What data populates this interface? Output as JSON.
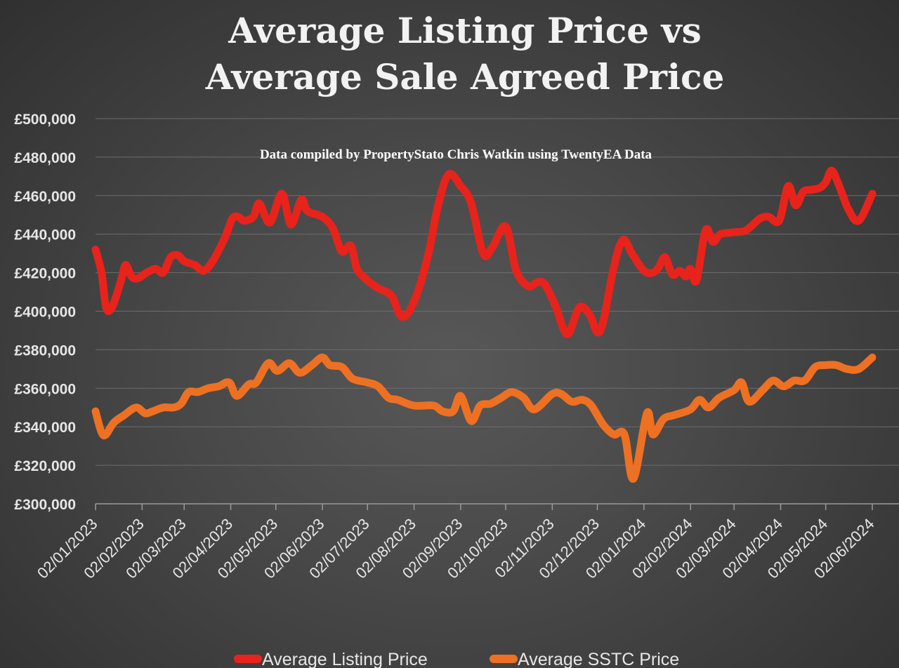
{
  "chart_data": {
    "type": "line",
    "title": [
      "Average Listing Price vs",
      "Average Sale Agreed Price"
    ],
    "annotation": "Data compiled by PropertyStato Chris Watkin using TwentyEA Data",
    "ylim": [
      300000,
      500000
    ],
    "y_ticks": [
      300000,
      320000,
      340000,
      360000,
      380000,
      400000,
      420000,
      440000,
      460000,
      480000,
      500000
    ],
    "y_tick_labels": [
      "£300,000",
      "£320,000",
      "£340,000",
      "£360,000",
      "£380,000",
      "£400,000",
      "£420,000",
      "£440,000",
      "£460,000",
      "£480,000",
      "£500,000"
    ],
    "x_range": [
      "2023-01-02",
      "2024-06-02"
    ],
    "x_ticks": [
      "2023-01-02",
      "2023-02-02",
      "2023-03-02",
      "2023-04-02",
      "2023-05-02",
      "2023-06-02",
      "2023-07-02",
      "2023-08-02",
      "2023-09-02",
      "2023-10-02",
      "2023-11-02",
      "2023-12-02",
      "2024-01-02",
      "2024-02-02",
      "2024-03-02",
      "2024-04-02",
      "2024-05-02",
      "2024-06-02"
    ],
    "x_tick_labels": [
      "02/01/2023",
      "02/02/2023",
      "02/03/2023",
      "02/04/2023",
      "02/05/2023",
      "02/06/2023",
      "02/07/2023",
      "02/08/2023",
      "02/09/2023",
      "02/10/2023",
      "02/11/2023",
      "02/12/2023",
      "02/01/2024",
      "02/02/2024",
      "02/03/2024",
      "02/04/2024",
      "02/05/2024",
      "02/06/2024"
    ],
    "grid": true,
    "legend_position": "bottom",
    "series": [
      {
        "name": "Average Listing Price",
        "color": "#e8231b",
        "points": [
          [
            "2023-01-02",
            432000
          ],
          [
            "2023-01-06",
            420000
          ],
          [
            "2023-01-09",
            402000
          ],
          [
            "2023-01-13",
            402000
          ],
          [
            "2023-01-19",
            416000
          ],
          [
            "2023-01-22",
            424000
          ],
          [
            "2023-01-26",
            418000
          ],
          [
            "2023-01-30",
            417000
          ],
          [
            "2023-02-05",
            420000
          ],
          [
            "2023-02-11",
            422000
          ],
          [
            "2023-02-16",
            420000
          ],
          [
            "2023-02-21",
            428000
          ],
          [
            "2023-02-26",
            429000
          ],
          [
            "2023-03-02",
            426000
          ],
          [
            "2023-03-09",
            424000
          ],
          [
            "2023-03-15",
            421000
          ],
          [
            "2023-03-21",
            426000
          ],
          [
            "2023-03-29",
            438000
          ],
          [
            "2023-04-03",
            448000
          ],
          [
            "2023-04-07",
            449000
          ],
          [
            "2023-04-11",
            447000
          ],
          [
            "2023-04-17",
            449000
          ],
          [
            "2023-04-21",
            456000
          ],
          [
            "2023-04-28",
            446000
          ],
          [
            "2023-05-06",
            461000
          ],
          [
            "2023-05-12",
            445000
          ],
          [
            "2023-05-19",
            458000
          ],
          [
            "2023-05-23",
            452000
          ],
          [
            "2023-06-02",
            449000
          ],
          [
            "2023-06-09",
            443000
          ],
          [
            "2023-06-15",
            431000
          ],
          [
            "2023-06-21",
            434000
          ],
          [
            "2023-06-25",
            422000
          ],
          [
            "2023-07-02",
            416000
          ],
          [
            "2023-07-09",
            412000
          ],
          [
            "2023-07-18",
            408000
          ],
          [
            "2023-07-25",
            397000
          ],
          [
            "2023-08-02",
            405000
          ],
          [
            "2023-08-11",
            428000
          ],
          [
            "2023-08-18",
            455000
          ],
          [
            "2023-08-25",
            471000
          ],
          [
            "2023-09-02",
            465000
          ],
          [
            "2023-09-09",
            456000
          ],
          [
            "2023-09-17",
            430000
          ],
          [
            "2023-09-23",
            433000
          ],
          [
            "2023-10-02",
            444000
          ],
          [
            "2023-10-09",
            421000
          ],
          [
            "2023-10-17",
            413000
          ],
          [
            "2023-10-23",
            415000
          ],
          [
            "2023-10-28",
            414000
          ],
          [
            "2023-11-04",
            403000
          ],
          [
            "2023-11-12",
            388000
          ],
          [
            "2023-11-20",
            402000
          ],
          [
            "2023-11-27",
            398000
          ],
          [
            "2023-12-02",
            389000
          ],
          [
            "2023-12-06",
            395000
          ],
          [
            "2023-12-13",
            423000
          ],
          [
            "2023-12-19",
            437000
          ],
          [
            "2023-12-25",
            430000
          ],
          [
            "2024-01-02",
            421000
          ],
          [
            "2024-01-08",
            420000
          ],
          [
            "2024-01-12",
            423000
          ],
          [
            "2024-01-16",
            428000
          ],
          [
            "2024-01-21",
            419000
          ],
          [
            "2024-01-26",
            421000
          ],
          [
            "2024-01-30",
            418000
          ],
          [
            "2024-02-02",
            422000
          ],
          [
            "2024-02-06",
            416000
          ],
          [
            "2024-02-12",
            442000
          ],
          [
            "2024-02-17",
            436000
          ],
          [
            "2024-02-22",
            440000
          ],
          [
            "2024-03-02",
            441000
          ],
          [
            "2024-03-10",
            442000
          ],
          [
            "2024-03-19",
            448000
          ],
          [
            "2024-03-25",
            449000
          ],
          [
            "2024-04-01",
            447000
          ],
          [
            "2024-04-07",
            465000
          ],
          [
            "2024-04-12",
            455000
          ],
          [
            "2024-04-17",
            462000
          ],
          [
            "2024-04-22",
            463000
          ],
          [
            "2024-04-28",
            464000
          ],
          [
            "2024-05-02",
            467000
          ],
          [
            "2024-05-06",
            473000
          ],
          [
            "2024-05-11",
            465000
          ],
          [
            "2024-05-17",
            453000
          ],
          [
            "2024-05-24",
            447000
          ],
          [
            "2024-06-02",
            461000
          ]
        ]
      },
      {
        "name": "Average SSTC Price",
        "color": "#ee7023",
        "points": [
          [
            "2023-01-02",
            348000
          ],
          [
            "2023-01-06",
            337000
          ],
          [
            "2023-01-09",
            336000
          ],
          [
            "2023-01-14",
            342000
          ],
          [
            "2023-01-21",
            346000
          ],
          [
            "2023-01-29",
            350000
          ],
          [
            "2023-02-04",
            347000
          ],
          [
            "2023-02-09",
            348000
          ],
          [
            "2023-02-16",
            350000
          ],
          [
            "2023-02-23",
            350000
          ],
          [
            "2023-02-28",
            352000
          ],
          [
            "2023-03-05",
            358000
          ],
          [
            "2023-03-11",
            358000
          ],
          [
            "2023-03-18",
            360000
          ],
          [
            "2023-03-25",
            361000
          ],
          [
            "2023-04-01",
            363000
          ],
          [
            "2023-04-06",
            356000
          ],
          [
            "2023-04-14",
            362000
          ],
          [
            "2023-04-19",
            363000
          ],
          [
            "2023-04-27",
            373000
          ],
          [
            "2023-05-03",
            369000
          ],
          [
            "2023-05-11",
            373000
          ],
          [
            "2023-05-18",
            368000
          ],
          [
            "2023-05-26",
            372000
          ],
          [
            "2023-06-02",
            376000
          ],
          [
            "2023-06-07",
            372000
          ],
          [
            "2023-06-15",
            371000
          ],
          [
            "2023-06-22",
            365000
          ],
          [
            "2023-07-02",
            363000
          ],
          [
            "2023-07-09",
            361000
          ],
          [
            "2023-07-16",
            355000
          ],
          [
            "2023-07-22",
            354000
          ],
          [
            "2023-08-02",
            351000
          ],
          [
            "2023-08-15",
            351000
          ],
          [
            "2023-08-21",
            348000
          ],
          [
            "2023-08-28",
            348000
          ],
          [
            "2023-09-02",
            356000
          ],
          [
            "2023-09-09",
            343000
          ],
          [
            "2023-09-15",
            351000
          ],
          [
            "2023-09-22",
            352000
          ],
          [
            "2023-09-29",
            355000
          ],
          [
            "2023-10-06",
            358000
          ],
          [
            "2023-10-14",
            355000
          ],
          [
            "2023-10-21",
            349000
          ],
          [
            "2023-11-02",
            357000
          ],
          [
            "2023-11-08",
            357000
          ],
          [
            "2023-11-15",
            353000
          ],
          [
            "2023-11-22",
            354000
          ],
          [
            "2023-11-28",
            351000
          ],
          [
            "2023-12-06",
            341000
          ],
          [
            "2023-12-13",
            336000
          ],
          [
            "2023-12-20",
            336000
          ],
          [
            "2023-12-26",
            313000
          ],
          [
            "2024-01-04",
            347000
          ],
          [
            "2024-01-08",
            336000
          ],
          [
            "2024-01-15",
            344000
          ],
          [
            "2024-01-22",
            346000
          ],
          [
            "2024-02-02",
            349000
          ],
          [
            "2024-02-08",
            354000
          ],
          [
            "2024-02-14",
            350000
          ],
          [
            "2024-02-21",
            355000
          ],
          [
            "2024-03-02",
            359000
          ],
          [
            "2024-03-07",
            363000
          ],
          [
            "2024-03-12",
            353000
          ],
          [
            "2024-03-21",
            359000
          ],
          [
            "2024-03-28",
            364000
          ],
          [
            "2024-04-04",
            361000
          ],
          [
            "2024-04-11",
            364000
          ],
          [
            "2024-04-18",
            364000
          ],
          [
            "2024-04-25",
            371000
          ],
          [
            "2024-05-02",
            372000
          ],
          [
            "2024-05-09",
            372000
          ],
          [
            "2024-05-16",
            370000
          ],
          [
            "2024-05-24",
            370000
          ],
          [
            "2024-06-02",
            376000
          ]
        ]
      }
    ]
  }
}
